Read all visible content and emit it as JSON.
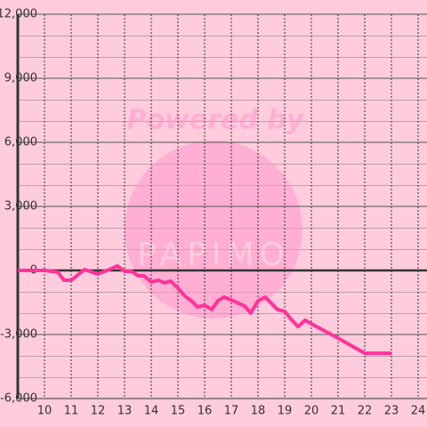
{
  "chart_data": {
    "type": "line",
    "watermark": {
      "line1": "Powered by",
      "line2": "PAPIMO"
    },
    "x": [
      9,
      10,
      10.5,
      10.73,
      11,
      11.5,
      12,
      12.5,
      12.73,
      13,
      13.27,
      13.5,
      13.73,
      14,
      14.27,
      14.5,
      14.73,
      15,
      15.27,
      15.5,
      15.73,
      16,
      16.27,
      16.5,
      16.73,
      17,
      17.27,
      17.5,
      17.73,
      18,
      18.27,
      18.5,
      18.73,
      19,
      19.27,
      19.5,
      19.77,
      20,
      21,
      22,
      23
    ],
    "series": [
      {
        "color": "#ff3399",
        "values": [
          0,
          0,
          -80,
          -460,
          -460,
          40,
          -170,
          80,
          210,
          -40,
          -40,
          -250,
          -250,
          -540,
          -460,
          -580,
          -500,
          -830,
          -1210,
          -1420,
          -1710,
          -1630,
          -1830,
          -1420,
          -1250,
          -1380,
          -1540,
          -1670,
          -2000,
          -1420,
          -1250,
          -1540,
          -1830,
          -1920,
          -2330,
          -2630,
          -2330,
          -2500,
          -3170,
          -3880,
          -3880
        ]
      }
    ],
    "xlim": [
      9,
      24.333
    ],
    "xticks": [
      10,
      11,
      12,
      13,
      14,
      15,
      16,
      17,
      18,
      19,
      20,
      21,
      22,
      23,
      24
    ],
    "ylim": [
      -6000,
      12000
    ],
    "yticks": [
      {
        "value": -6000,
        "label": "-6,000"
      },
      {
        "value": -3000,
        "label": "-3,000"
      },
      0,
      {
        "value": 3000,
        "label": "3,000"
      },
      {
        "value": 6000,
        "label": "6,000"
      },
      {
        "value": 9000,
        "label": "9,000"
      },
      {
        "value": 12000,
        "label": "12,000"
      }
    ],
    "grid": true
  }
}
